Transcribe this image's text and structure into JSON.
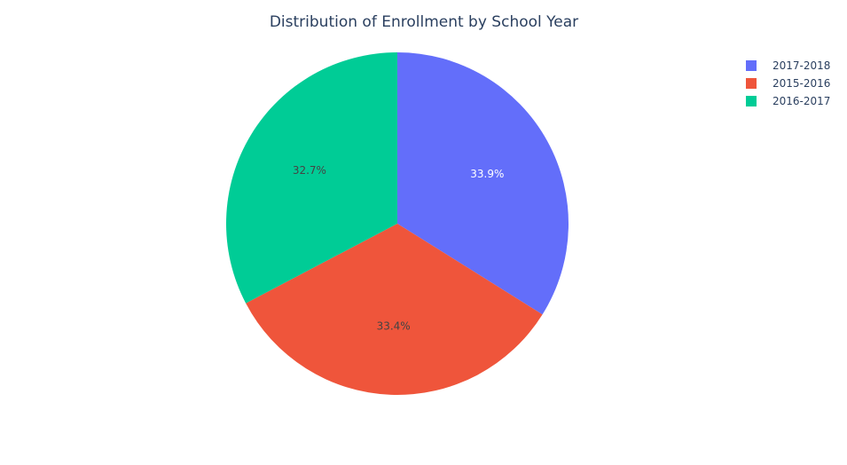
{
  "chart_data": {
    "type": "pie",
    "title": "Distribution of Enrollment by School Year",
    "categories": [
      "2017-2018",
      "2015-2016",
      "2016-2017"
    ],
    "values": [
      33.9,
      33.4,
      32.7
    ],
    "labels": [
      "33.9%",
      "33.4%",
      "32.7%"
    ],
    "colors": [
      "#636efa",
      "#ef553b",
      "#00cc96"
    ],
    "label_colors": [
      "#ffffff",
      "#444444",
      "#444444"
    ],
    "direction": "clockwise",
    "start_angle": "top",
    "legend": {
      "position": "top-right",
      "entries": [
        "2017-2018",
        "2015-2016",
        "2016-2017"
      ]
    }
  }
}
